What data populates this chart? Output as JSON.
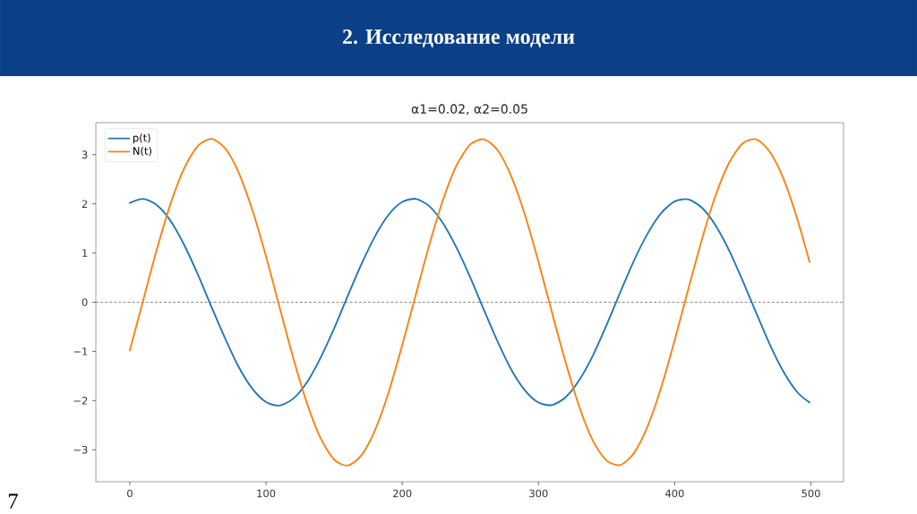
{
  "chart_data": {
    "type": "line",
    "title": "2. Исследование модели",
    "subtitle": "α1=0.02, α2=0.05",
    "x": [
      0,
      10,
      20,
      30,
      40,
      50,
      60,
      70,
      80,
      90,
      100,
      110,
      120,
      130,
      140,
      150,
      160,
      170,
      180,
      190,
      200,
      210,
      220,
      230,
      240,
      250,
      260,
      270,
      280,
      290,
      300,
      310,
      320,
      330,
      340,
      350,
      360,
      370,
      380,
      390,
      400,
      410,
      420,
      430,
      440,
      450,
      460,
      470,
      480,
      490,
      499
    ],
    "series": [
      {
        "name": "p(t)",
        "color": "#1f77b4",
        "values": [
          2.02,
          2.1,
          1.97,
          1.65,
          1.16,
          0.56,
          -0.1,
          -0.74,
          -1.32,
          -1.76,
          -2.03,
          -2.1,
          -1.96,
          -1.63,
          -1.13,
          -0.53,
          0.13,
          0.77,
          1.34,
          1.78,
          2.04,
          2.1,
          1.95,
          1.6,
          1.1,
          0.5,
          -0.16,
          -0.8,
          -1.37,
          -1.79,
          -2.04,
          -2.09,
          -1.93,
          -1.58,
          -1.08,
          -0.46,
          0.2,
          0.84,
          1.39,
          1.81,
          2.05,
          2.09,
          1.92,
          1.56,
          1.05,
          0.43,
          -0.23,
          -0.87,
          -1.42,
          -1.83,
          -2.04
        ]
      },
      {
        "name": "N(t)",
        "color": "#ff7f0e",
        "values": [
          -0.98,
          0.06,
          1.09,
          2.01,
          2.73,
          3.18,
          3.32,
          3.13,
          2.63,
          1.87,
          0.93,
          -0.11,
          -1.14,
          -2.05,
          -2.76,
          -3.2,
          -3.32,
          -3.11,
          -2.6,
          -1.83,
          -0.87,
          0.16,
          1.18,
          2.09,
          2.79,
          3.21,
          3.31,
          3.09,
          2.56,
          1.78,
          0.82,
          -0.22,
          -1.23,
          -2.13,
          -2.82,
          -3.22,
          -3.31,
          -3.07,
          -2.53,
          -1.74,
          -0.77,
          0.27,
          1.28,
          2.17,
          2.84,
          3.23,
          3.31,
          3.05,
          2.5,
          1.69,
          0.82
        ]
      }
    ],
    "xlim": [
      -24.95,
      523.95
    ],
    "ylim": [
      -3.65,
      3.65
    ],
    "xticks": [
      0,
      100,
      200,
      300,
      400,
      500
    ],
    "yticks": [
      {
        "value": -3,
        "label": "−3"
      },
      {
        "value": -2,
        "label": "−2"
      },
      {
        "value": -1,
        "label": "−1"
      },
      0,
      1,
      2,
      3
    ],
    "ref_lines": [
      {
        "axis": "y",
        "value": 0,
        "color": "#808080",
        "line_style": "dashed"
      }
    ],
    "legend": "top left",
    "annotations": [
      "7"
    ]
  }
}
